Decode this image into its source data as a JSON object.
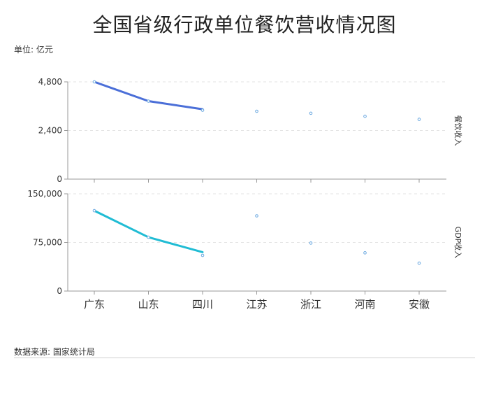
{
  "chart_data": {
    "type": "line",
    "title": "全国省级行政单位餐饮营收情况图",
    "unit": "单位: 亿元",
    "source": "数据来源: 国家统计局",
    "categories": [
      "广东",
      "山东",
      "四川",
      "江苏",
      "浙江",
      "河南",
      "安徽"
    ],
    "grid": true,
    "panels": [
      {
        "series_name": "餐饮收入",
        "color": "#4b6fd8",
        "ylim": [
          0,
          4800
        ],
        "yticks": [
          0,
          2400,
          4800
        ],
        "ytick_labels": [
          "0",
          "2,400",
          "4,800"
        ],
        "line_values": [
          4800,
          3850,
          3450
        ],
        "point_values": [
          4800,
          3850,
          3400,
          3350,
          3250,
          3100,
          2950
        ]
      },
      {
        "series_name": "GDP收入",
        "color": "#20bcd4",
        "ylim": [
          0,
          150000
        ],
        "yticks": [
          0,
          75000,
          150000
        ],
        "ytick_labels": [
          "0",
          "75,000",
          "150,000"
        ],
        "line_values": [
          124000,
          83000,
          60000
        ],
        "point_values": [
          124000,
          83000,
          55000,
          116000,
          74000,
          59000,
          43000
        ]
      }
    ]
  }
}
